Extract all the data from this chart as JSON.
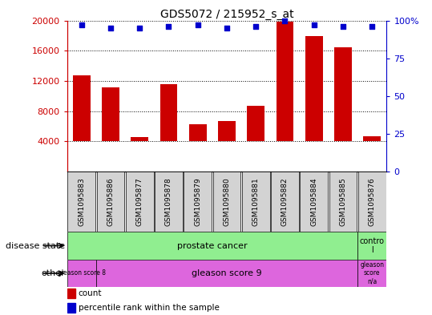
{
  "title": "GDS5072 / 215952_s_at",
  "samples": [
    "GSM1095883",
    "GSM1095886",
    "GSM1095877",
    "GSM1095878",
    "GSM1095879",
    "GSM1095880",
    "GSM1095881",
    "GSM1095882",
    "GSM1095884",
    "GSM1095885",
    "GSM1095876"
  ],
  "counts": [
    12700,
    11100,
    4600,
    11600,
    6300,
    6700,
    8700,
    19800,
    17900,
    16500,
    4700
  ],
  "percentiles": [
    97,
    95,
    95,
    96,
    97,
    95,
    96,
    100,
    97,
    96,
    96
  ],
  "ylim_left": [
    0,
    20000
  ],
  "ylim_right": [
    0,
    100
  ],
  "yticks_left": [
    4000,
    8000,
    12000,
    16000,
    20000
  ],
  "ytick_labels_left": [
    "4000",
    "8000",
    "12000",
    "16000",
    "20000"
  ],
  "yticks_right": [
    0,
    25,
    50,
    75,
    100
  ],
  "ytick_labels_right": [
    "0",
    "25",
    "50",
    "75",
    "100%"
  ],
  "bar_color": "#cc0000",
  "dot_color": "#0000cc",
  "row_label_disease": "disease state",
  "row_label_other": "other",
  "legend_count": "count",
  "legend_percentile": "percentile rank within the sample",
  "axis_color_left": "#cc0000",
  "axis_color_right": "#0000cc",
  "bar_bottom": 4000,
  "background_color": "#ffffff",
  "tick_label_area_bg": "#d3d3d3",
  "green_color": "#90ee90",
  "magenta_color": "#dd66dd"
}
